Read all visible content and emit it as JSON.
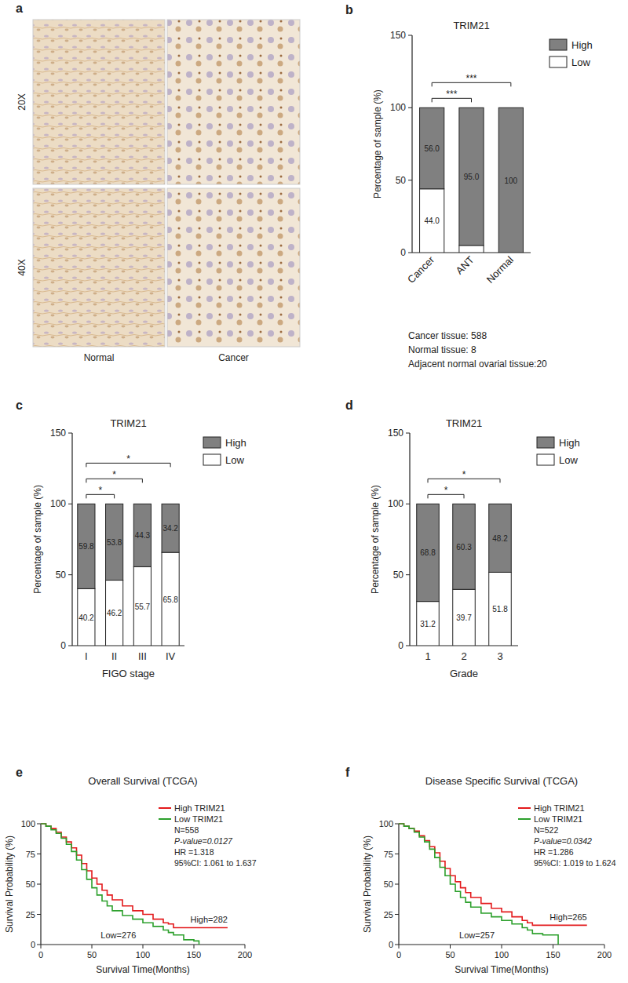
{
  "image_panel": {
    "panel": "a",
    "row_labels": [
      "20X",
      "40X"
    ],
    "column_labels": [
      "Normal",
      "Cancer"
    ]
  },
  "chart_data": [
    {
      "panel": "b",
      "type": "bar",
      "stacked": true,
      "title": "TRIM21",
      "categories": [
        "Cancer",
        "ANT",
        "Normal"
      ],
      "series": [
        {
          "name": "High",
          "color": "#808080",
          "values": [
            56.0,
            95.0,
            100
          ],
          "value_labels": [
            "56.0",
            "95.0",
            "100"
          ]
        },
        {
          "name": "Low",
          "color": "#ffffff",
          "values": [
            44.0,
            5.0,
            0
          ],
          "value_labels": [
            "44.0",
            null,
            null
          ]
        }
      ],
      "ylim": [
        0,
        150
      ],
      "yticks": [
        0,
        50,
        100,
        150
      ],
      "y_label": "Percentage of sample (%)",
      "legend": "upper right",
      "data_labels": true,
      "annotations": [
        {
          "between": [
            "Cancer",
            "ANT"
          ],
          "text": "***"
        },
        {
          "between": [
            "Cancer",
            "Normal"
          ],
          "text": "***"
        }
      ],
      "notes": [
        "Cancer tissue: 588",
        "Normal tissue: 8",
        "Adjacent normal ovarial tissue:20"
      ]
    },
    {
      "panel": "c",
      "type": "bar",
      "stacked": true,
      "title": "TRIM21",
      "categories": [
        "I",
        "II",
        "III",
        "IV"
      ],
      "series": [
        {
          "name": "High",
          "color": "#808080",
          "values": [
            59.8,
            53.8,
            44.3,
            34.2
          ]
        },
        {
          "name": "Low",
          "color": "#ffffff",
          "values": [
            40.2,
            46.2,
            55.7,
            65.8
          ]
        }
      ],
      "ylim": [
        0,
        150
      ],
      "yticks": [
        0,
        50,
        100,
        150
      ],
      "x_label": "FIGO stage",
      "y_label": "Percentage of sample (%)",
      "legend": "upper right",
      "data_labels": true,
      "annotations": [
        {
          "between": [
            "I",
            "II"
          ],
          "text": "*"
        },
        {
          "between": [
            "I",
            "III"
          ],
          "text": "*"
        },
        {
          "between": [
            "I",
            "IV"
          ],
          "text": "*"
        }
      ]
    },
    {
      "panel": "d",
      "type": "bar",
      "stacked": true,
      "title": "TRIM21",
      "categories": [
        "1",
        "2",
        "3"
      ],
      "series": [
        {
          "name": "High",
          "color": "#808080",
          "values": [
            68.8,
            60.3,
            48.2
          ]
        },
        {
          "name": "Low",
          "color": "#ffffff",
          "values": [
            31.2,
            39.7,
            51.8
          ]
        }
      ],
      "ylim": [
        0,
        150
      ],
      "yticks": [
        0,
        50,
        100,
        150
      ],
      "x_label": "Grade",
      "y_label": "Percentage of sample (%)",
      "legend": "upper right",
      "data_labels": true,
      "annotations": [
        {
          "between": [
            "1",
            "2"
          ],
          "text": "*"
        },
        {
          "between": [
            "1",
            "3"
          ],
          "text": "*"
        }
      ]
    },
    {
      "panel": "e",
      "type": "line",
      "line_style": "step",
      "title": "Overall Survival (TCGA)",
      "series": [
        {
          "name": "High TRIM21",
          "color": "#e31a1c",
          "x": [
            0,
            5,
            10,
            15,
            20,
            25,
            30,
            35,
            40,
            45,
            50,
            55,
            60,
            65,
            70,
            80,
            90,
            100,
            110,
            120,
            125,
            130,
            183
          ],
          "values": [
            100,
            98,
            96,
            93,
            89,
            85,
            80,
            74,
            67,
            61,
            55,
            50,
            45,
            41,
            37,
            32,
            28,
            25,
            21,
            18,
            17,
            14,
            14
          ]
        },
        {
          "name": "Low TRIM21",
          "color": "#2ca02c",
          "x": [
            0,
            5,
            10,
            15,
            20,
            25,
            30,
            35,
            40,
            45,
            50,
            55,
            60,
            65,
            70,
            80,
            90,
            100,
            110,
            120,
            125,
            130,
            140,
            150,
            155
          ],
          "values": [
            100,
            98,
            95,
            92,
            88,
            83,
            77,
            70,
            62,
            54,
            47,
            41,
            36,
            32,
            28,
            24,
            21,
            18,
            15,
            12,
            10,
            8,
            4,
            3,
            0
          ]
        }
      ],
      "xlim": [
        0,
        200
      ],
      "xticks": [
        0,
        50,
        100,
        150,
        200
      ],
      "ylim": [
        0,
        100
      ],
      "yticks": [
        0,
        25,
        50,
        75,
        100
      ],
      "x_label": "Survival Time(Months)",
      "y_label": "Survival Probability (%)",
      "legend": "upper right",
      "stats": [
        "N=558",
        "P-value=0.0127",
        "HR =1.318",
        "95%CI: 1.061 to 1.637"
      ],
      "annotations": [
        {
          "series": "High TRIM21",
          "text": "High=282"
        },
        {
          "series": "Low TRIM21",
          "text": "Low=276"
        }
      ]
    },
    {
      "panel": "f",
      "type": "line",
      "line_style": "step",
      "title": "Disease Specific Survival (TCGA)",
      "series": [
        {
          "name": "High TRIM21",
          "color": "#e31a1c",
          "x": [
            0,
            5,
            10,
            15,
            20,
            25,
            30,
            35,
            40,
            45,
            50,
            55,
            60,
            65,
            70,
            80,
            90,
            100,
            110,
            120,
            125,
            130,
            183
          ],
          "values": [
            100,
            98,
            96,
            94,
            90,
            86,
            81,
            76,
            69,
            63,
            57,
            52,
            47,
            43,
            39,
            34,
            30,
            27,
            23,
            20,
            18,
            16,
            16
          ]
        },
        {
          "name": "Low TRIM21",
          "color": "#2ca02c",
          "x": [
            0,
            5,
            10,
            15,
            20,
            25,
            30,
            35,
            40,
            45,
            50,
            55,
            60,
            65,
            70,
            80,
            90,
            100,
            110,
            120,
            125,
            130,
            140,
            150,
            155
          ],
          "values": [
            100,
            98,
            96,
            93,
            89,
            85,
            79,
            72,
            64,
            57,
            50,
            44,
            39,
            35,
            31,
            26,
            23,
            20,
            17,
            14,
            12,
            9,
            8,
            8,
            0
          ]
        }
      ],
      "xlim": [
        0,
        200
      ],
      "xticks": [
        0,
        50,
        100,
        150,
        200
      ],
      "ylim": [
        0,
        100
      ],
      "yticks": [
        0,
        25,
        50,
        75,
        100
      ],
      "x_label": "Survival Time(Months)",
      "y_label": "Survival Probability (%)",
      "legend": "upper right",
      "stats": [
        "N=522",
        "P-value=0.0342",
        "HR =1.286",
        "95%CI: 1.019 to 1.624"
      ],
      "annotations": [
        {
          "series": "High TRIM21",
          "text": "High=265"
        },
        {
          "series": "Low TRIM21",
          "text": "Low=257"
        }
      ]
    }
  ]
}
